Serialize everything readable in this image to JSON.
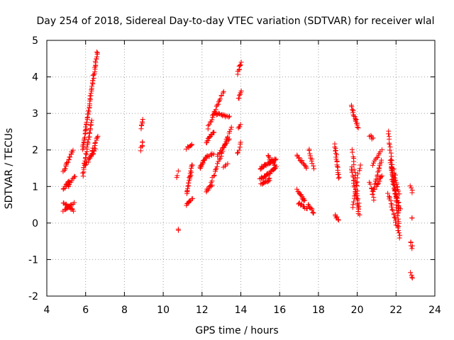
{
  "chart_data": {
    "type": "scatter",
    "title": "Day 254 of 2018, Sidereal Day-to-day VTEC variation (SDTVAR) for receiver wlal",
    "xlabel": "GPS time / hours",
    "ylabel": "SDTVAR / TECUs",
    "xlim": [
      4,
      24
    ],
    "ylim": [
      -2,
      5
    ],
    "xticks": [
      "4",
      "6",
      "8",
      "10",
      "12",
      "14",
      "16",
      "18",
      "20",
      "22",
      "24"
    ],
    "yticks": [
      "-2",
      "-1",
      "0",
      "1",
      "2",
      "3",
      "4",
      "5"
    ],
    "grid": true,
    "marker": "+",
    "color": "#ff0000",
    "tracks": [
      {
        "x": [
          4.85,
          5.35
        ],
        "y": [
          1.4,
          2.0
        ],
        "n": 18
      },
      {
        "x": [
          4.85,
          5.15
        ],
        "y": [
          0.9,
          1.15
        ],
        "n": 10
      },
      {
        "x": [
          5.1,
          5.45
        ],
        "y": [
          1.0,
          1.3
        ],
        "n": 10
      },
      {
        "x": [
          4.85,
          5.35
        ],
        "y": [
          0.55,
          0.35
        ],
        "n": 14
      },
      {
        "x": [
          4.85,
          5.4
        ],
        "y": [
          0.35,
          0.55
        ],
        "n": 12
      },
      {
        "x": [
          5.85,
          6.6
        ],
        "y": [
          2.0,
          4.7
        ],
        "n": 60
      },
      {
        "x": [
          5.85,
          6.3
        ],
        "y": [
          1.3,
          2.8
        ],
        "n": 30
      },
      {
        "x": [
          6.0,
          6.5
        ],
        "y": [
          1.6,
          2.0
        ],
        "n": 18
      },
      {
        "x": [
          6.3,
          6.65
        ],
        "y": [
          1.9,
          2.4
        ],
        "n": 12
      },
      {
        "x": [
          8.85,
          8.95
        ],
        "y": [
          2.0,
          2.25
        ],
        "n": 6
      },
      {
        "x": [
          8.85,
          8.95
        ],
        "y": [
          2.6,
          2.85
        ],
        "n": 6
      },
      {
        "x": [
          10.7,
          10.8
        ],
        "y": [
          1.25,
          1.4
        ],
        "n": 3
      },
      {
        "x": [
          10.75,
          10.8
        ],
        "y": [
          -0.17,
          -0.22
        ],
        "n": 2
      },
      {
        "x": [
          11.2,
          11.5
        ],
        "y": [
          2.05,
          2.15
        ],
        "n": 8
      },
      {
        "x": [
          11.2,
          11.5
        ],
        "y": [
          0.8,
          1.6
        ],
        "n": 22
      },
      {
        "x": [
          11.2,
          11.5
        ],
        "y": [
          0.5,
          0.65
        ],
        "n": 10
      },
      {
        "x": [
          11.9,
          12.2
        ],
        "y": [
          1.5,
          1.8
        ],
        "n": 14
      },
      {
        "x": [
          12.2,
          12.6
        ],
        "y": [
          2.2,
          2.5
        ],
        "n": 14
      },
      {
        "x": [
          12.3,
          13.1
        ],
        "y": [
          2.6,
          3.6
        ],
        "n": 22
      },
      {
        "x": [
          12.6,
          13.4
        ],
        "y": [
          3.0,
          2.9
        ],
        "n": 18
      },
      {
        "x": [
          12.2,
          12.6
        ],
        "y": [
          1.8,
          1.9
        ],
        "n": 8
      },
      {
        "x": [
          12.4,
          13.5
        ],
        "y": [
          1.0,
          2.6
        ],
        "n": 30
      },
      {
        "x": [
          12.2,
          12.5
        ],
        "y": [
          0.85,
          1.05
        ],
        "n": 8
      },
      {
        "x": [
          12.8,
          13.4
        ],
        "y": [
          1.85,
          2.3
        ],
        "n": 14
      },
      {
        "x": [
          13.1,
          13.3
        ],
        "y": [
          1.55,
          1.65
        ],
        "n": 4
      },
      {
        "x": [
          13.85,
          14.0
        ],
        "y": [
          4.1,
          4.4
        ],
        "n": 8
      },
      {
        "x": [
          13.9,
          14.0
        ],
        "y": [
          3.4,
          3.6
        ],
        "n": 6
      },
      {
        "x": [
          13.9,
          14.0
        ],
        "y": [
          2.6,
          2.7
        ],
        "n": 4
      },
      {
        "x": [
          13.85,
          14.0
        ],
        "y": [
          1.9,
          2.2
        ],
        "n": 6
      },
      {
        "x": [
          15.0,
          15.8
        ],
        "y": [
          1.5,
          1.75
        ],
        "n": 30
      },
      {
        "x": [
          15.0,
          15.8
        ],
        "y": [
          1.2,
          1.5
        ],
        "n": 30
      },
      {
        "x": [
          15.05,
          15.5
        ],
        "y": [
          1.05,
          1.2
        ],
        "n": 14
      },
      {
        "x": [
          15.4,
          15.8
        ],
        "y": [
          1.85,
          1.55
        ],
        "n": 12
      },
      {
        "x": [
          16.9,
          17.4
        ],
        "y": [
          1.85,
          1.5
        ],
        "n": 14
      },
      {
        "x": [
          16.9,
          17.3
        ],
        "y": [
          0.9,
          0.6
        ],
        "n": 14
      },
      {
        "x": [
          16.95,
          17.4
        ],
        "y": [
          0.55,
          0.4
        ],
        "n": 12
      },
      {
        "x": [
          17.5,
          17.75
        ],
        "y": [
          2.05,
          1.5
        ],
        "n": 10
      },
      {
        "x": [
          17.5,
          17.75
        ],
        "y": [
          0.5,
          0.25
        ],
        "n": 10
      },
      {
        "x": [
          18.85,
          19.05
        ],
        "y": [
          2.15,
          1.2
        ],
        "n": 20
      },
      {
        "x": [
          18.85,
          19.05
        ],
        "y": [
          0.2,
          0.1
        ],
        "n": 6
      },
      {
        "x": [
          19.7,
          20.05
        ],
        "y": [
          3.2,
          2.6
        ],
        "n": 18
      },
      {
        "x": [
          19.7,
          20.1
        ],
        "y": [
          1.55,
          0.2
        ],
        "n": 24
      },
      {
        "x": [
          19.75,
          20.1
        ],
        "y": [
          2.0,
          0.4
        ],
        "n": 20
      },
      {
        "x": [
          19.75,
          20.15
        ],
        "y": [
          0.4,
          1.6
        ],
        "n": 14
      },
      {
        "x": [
          20.65,
          20.8
        ],
        "y": [
          2.4,
          2.3
        ],
        "n": 6
      },
      {
        "x": [
          20.65,
          20.85
        ],
        "y": [
          1.1,
          0.65
        ],
        "n": 8
      },
      {
        "x": [
          20.8,
          21.25
        ],
        "y": [
          1.6,
          2.0
        ],
        "n": 10
      },
      {
        "x": [
          20.8,
          21.25
        ],
        "y": [
          0.8,
          1.7
        ],
        "n": 20
      },
      {
        "x": [
          21.0,
          21.25
        ],
        "y": [
          1.0,
          1.3
        ],
        "n": 10
      },
      {
        "x": [
          21.6,
          22.2
        ],
        "y": [
          2.5,
          -0.4
        ],
        "n": 40
      },
      {
        "x": [
          21.7,
          22.15
        ],
        "y": [
          1.7,
          0.3
        ],
        "n": 30
      },
      {
        "x": [
          21.8,
          22.2
        ],
        "y": [
          1.2,
          0.4
        ],
        "n": 20
      },
      {
        "x": [
          21.6,
          22.1
        ],
        "y": [
          0.8,
          -0.2
        ],
        "n": 20
      },
      {
        "x": [
          21.85,
          22.15
        ],
        "y": [
          1.5,
          0.8
        ],
        "n": 14
      },
      {
        "x": [
          22.75,
          22.85
        ],
        "y": [
          1.0,
          0.85
        ],
        "n": 4
      },
      {
        "x": [
          22.8,
          22.85
        ],
        "y": [
          0.15,
          0.15
        ],
        "n": 2
      },
      {
        "x": [
          22.75,
          22.85
        ],
        "y": [
          -0.5,
          -0.7
        ],
        "n": 5
      },
      {
        "x": [
          22.75,
          22.85
        ],
        "y": [
          -1.35,
          -1.5
        ],
        "n": 4
      }
    ]
  }
}
